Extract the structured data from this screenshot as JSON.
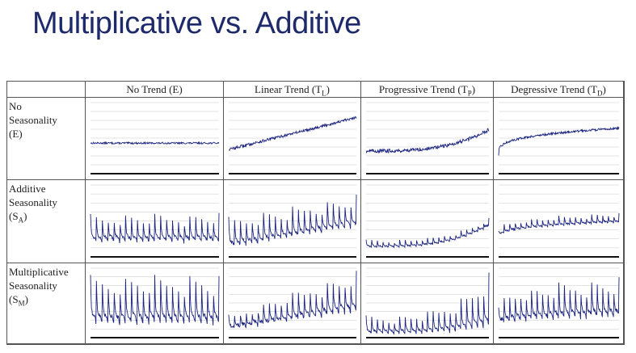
{
  "slide": {
    "title": "Multiplicative vs. Additive"
  },
  "colors": {
    "title": "#1f2a6b",
    "series": "#1a237e",
    "grid": "#c8c8c8",
    "axis": "#111111"
  },
  "table": {
    "columns": [
      {
        "label": "No Trend (E)"
      },
      {
        "label": "Linear Trend (T",
        "sub": "L",
        "tail": ")"
      },
      {
        "label": "Progressive Trend (T",
        "sub": "P",
        "tail": ")"
      },
      {
        "label": "Degressive Trend (T",
        "sub": "D",
        "tail": ")"
      }
    ],
    "rows": [
      {
        "line1": "No",
        "line2": "Seasonality",
        "line3a": "(E)",
        "line3sub": "",
        "line3b": ""
      },
      {
        "line1": "Additive",
        "line2": "Seasonality",
        "line3a": "(S",
        "line3sub": "A",
        "line3b": ")"
      },
      {
        "line1": "Multiplicative",
        "line2": "Seasonality",
        "line3a": "(S",
        "line3sub": "M",
        "line3b": ")"
      }
    ]
  },
  "chart_data": {
    "type": "line",
    "layout": "3x4 grid of small multiples",
    "grid": true,
    "x": "time index 0..100 (no tick labels shown)",
    "ylim": [
      0,
      10
    ],
    "panels": [
      {
        "row": "No Seasonality (E)",
        "column": "No Trend (E)",
        "trend": "none",
        "seasonality": "none",
        "level_start": 4.3,
        "level_end": 4.3,
        "season_amplitude": 0,
        "noise": 0.12
      },
      {
        "row": "No Seasonality (E)",
        "column": "Linear Trend (TL)",
        "trend": "linear",
        "seasonality": "none",
        "level_start": 3.4,
        "level_end": 7.9,
        "season_amplitude": 0,
        "noise": 0.2
      },
      {
        "row": "No Seasonality (E)",
        "column": "Progressive Trend (TP)",
        "trend": "progressive",
        "seasonality": "none",
        "level_start": 3.2,
        "level_end": 6.2,
        "season_amplitude": 0,
        "noise": 0.25
      },
      {
        "row": "No Seasonality (E)",
        "column": "Degressive Trend (TD)",
        "trend": "degressive",
        "seasonality": "none",
        "level_start": 2.6,
        "level_end": 6.4,
        "season_amplitude": 0,
        "noise": 0.15
      },
      {
        "row": "Additive Seasonality (SA)",
        "column": "No Trend (E)",
        "trend": "none",
        "seasonality": "additive",
        "level_start": 2.8,
        "level_end": 2.8,
        "season_amplitude": 3.2,
        "noise": 0.2,
        "periods": 22
      },
      {
        "row": "Additive Seasonality (SA)",
        "column": "Linear Trend (TL)",
        "trend": "linear",
        "seasonality": "additive",
        "level_start": 2.0,
        "level_end": 5.0,
        "season_amplitude": 3.6,
        "noise": 0.2,
        "periods": 22
      },
      {
        "row": "Additive Seasonality (SA)",
        "column": "Progressive Trend (TP)",
        "trend": "progressive",
        "seasonality": "additive",
        "level_start": 1.5,
        "level_end": 4.5,
        "season_amplitude": 0.9,
        "noise": 0.1,
        "periods": 22
      },
      {
        "row": "Additive Seasonality (SA)",
        "column": "Degressive Trend (TD)",
        "trend": "degressive",
        "seasonality": "additive",
        "level_start": 2.5,
        "level_end": 5.0,
        "season_amplitude": 1.1,
        "noise": 0.1,
        "periods": 22
      },
      {
        "row": "Multiplicative Seasonality (SM)",
        "column": "No Trend (E)",
        "trend": "none",
        "seasonality": "multiplicative",
        "level_start": 3.2,
        "level_end": 3.2,
        "season_amplitude": 5.8,
        "noise": 0.3,
        "periods": 22
      },
      {
        "row": "Multiplicative Seasonality (SM)",
        "column": "Linear Trend (TL)",
        "trend": "linear",
        "seasonality": "multiplicative",
        "level_start": 1.6,
        "level_end": 4.8,
        "season_amplitude": 5.0,
        "noise": 0.25,
        "periods": 22
      },
      {
        "row": "Multiplicative Seasonality (SM)",
        "column": "Progressive Trend (TP)",
        "trend": "progressive",
        "seasonality": "multiplicative",
        "level_start": 1.0,
        "level_end": 3.0,
        "season_amplitude": 6.5,
        "noise": 0.15,
        "periods": 22
      },
      {
        "row": "Multiplicative Seasonality (SM)",
        "column": "Degressive Trend (TD)",
        "trend": "degressive",
        "seasonality": "multiplicative",
        "level_start": 2.0,
        "level_end": 4.0,
        "season_amplitude": 4.5,
        "noise": 0.25,
        "periods": 22
      }
    ]
  }
}
